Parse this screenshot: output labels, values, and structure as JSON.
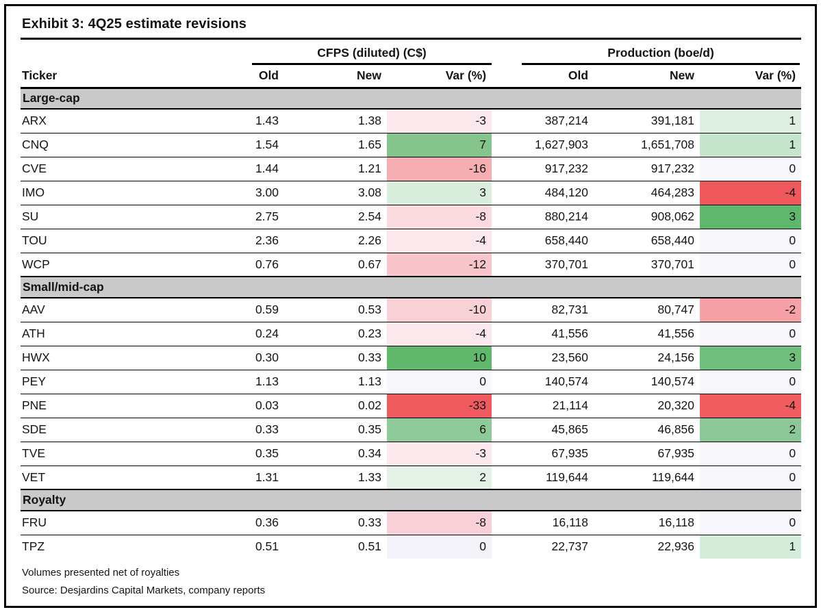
{
  "title": "Exhibit 3: 4Q25 estimate revisions",
  "table": {
    "groups": [
      {
        "label": "CFPS (diluted) (C$)"
      },
      {
        "label": "Production (boe/d)"
      }
    ],
    "columns": {
      "ticker": "Ticker",
      "old": "Old",
      "new": "New",
      "var": "Var (%)"
    },
    "section_band_color": "#c9c9c9",
    "negative_strong_color": "#ee585c",
    "positive_strong_color": "#5fb76d",
    "sections": [
      {
        "label": "Large-cap",
        "rows": [
          {
            "ticker": "ARX",
            "cfps_old": "1.43",
            "cfps_new": "1.38",
            "cfps_var": "-3",
            "cfps_var_color": "#fbe9ee",
            "prod_old": "387,214",
            "prod_new": "391,181",
            "prod_var": "1",
            "prod_var_color": "#dff0e3"
          },
          {
            "ticker": "CNQ",
            "cfps_old": "1.54",
            "cfps_new": "1.65",
            "cfps_var": "7",
            "cfps_var_color": "#85c58c",
            "prod_old": "1,627,903",
            "prod_new": "1,651,708",
            "prod_var": "1",
            "prod_var_color": "#c5e5cc"
          },
          {
            "ticker": "CVE",
            "cfps_old": "1.44",
            "cfps_new": "1.21",
            "cfps_var": "-16",
            "cfps_var_color": "#f5aeb2",
            "prod_old": "917,232",
            "prod_new": "917,232",
            "prod_var": "0",
            "prod_var_color": "#f8f7fb"
          },
          {
            "ticker": "IMO",
            "cfps_old": "3.00",
            "cfps_new": "3.08",
            "cfps_var": "3",
            "cfps_var_color": "#d9eedd",
            "prod_old": "484,120",
            "prod_new": "464,283",
            "prod_var": "-4",
            "prod_var_color": "#ee585c"
          },
          {
            "ticker": "SU",
            "cfps_old": "2.75",
            "cfps_new": "2.54",
            "cfps_var": "-8",
            "cfps_var_color": "#f9dbe0",
            "prod_old": "880,214",
            "prod_new": "908,062",
            "prod_var": "3",
            "prod_var_color": "#5fb76d"
          },
          {
            "ticker": "TOU",
            "cfps_old": "2.36",
            "cfps_new": "2.26",
            "cfps_var": "-4",
            "cfps_var_color": "#fae8ed",
            "prod_old": "658,440",
            "prod_new": "658,440",
            "prod_var": "0",
            "prod_var_color": "#f8f7fb"
          },
          {
            "ticker": "WCP",
            "cfps_old": "0.76",
            "cfps_new": "0.67",
            "cfps_var": "-12",
            "cfps_var_color": "#f7c5ca",
            "prod_old": "370,701",
            "prod_new": "370,701",
            "prod_var": "0",
            "prod_var_color": "#f8f7fb"
          }
        ]
      },
      {
        "label": "Small/mid-cap",
        "rows": [
          {
            "ticker": "AAV",
            "cfps_old": "0.59",
            "cfps_new": "0.53",
            "cfps_var": "-10",
            "cfps_var_color": "#f8d1d7",
            "prod_old": "82,731",
            "prod_new": "80,747",
            "prod_var": "-2",
            "prod_var_color": "#f5a1a7"
          },
          {
            "ticker": "ATH",
            "cfps_old": "0.24",
            "cfps_new": "0.23",
            "cfps_var": "-4",
            "cfps_var_color": "#fae8ed",
            "prod_old": "41,556",
            "prod_new": "41,556",
            "prod_var": "0",
            "prod_var_color": "#f8f7fb"
          },
          {
            "ticker": "HWX",
            "cfps_old": "0.30",
            "cfps_new": "0.33",
            "cfps_var": "10",
            "cfps_var_color": "#61b86d",
            "prod_old": "23,560",
            "prod_new": "24,156",
            "prod_var": "3",
            "prod_var_color": "#6fbe7b"
          },
          {
            "ticker": "PEY",
            "cfps_old": "1.13",
            "cfps_new": "1.13",
            "cfps_var": "0",
            "cfps_var_color": "#f8f7fb",
            "prod_old": "140,574",
            "prod_new": "140,574",
            "prod_var": "0",
            "prod_var_color": "#f8f7fb"
          },
          {
            "ticker": "PNE",
            "cfps_old": "0.03",
            "cfps_new": "0.02",
            "cfps_var": "-33",
            "cfps_var_color": "#ef5a5e",
            "prod_old": "21,114",
            "prod_new": "20,320",
            "prod_var": "-4",
            "prod_var_color": "#ef5d61"
          },
          {
            "ticker": "SDE",
            "cfps_old": "0.33",
            "cfps_new": "0.35",
            "cfps_var": "6",
            "cfps_var_color": "#8fca9a",
            "prod_old": "45,865",
            "prod_new": "46,856",
            "prod_var": "2",
            "prod_var_color": "#8cc897"
          },
          {
            "ticker": "TVE",
            "cfps_old": "0.35",
            "cfps_new": "0.34",
            "cfps_var": "-3",
            "cfps_var_color": "#fbe9ee",
            "prod_old": "67,935",
            "prod_new": "67,935",
            "prod_var": "0",
            "prod_var_color": "#f8f7fb"
          },
          {
            "ticker": "VET",
            "cfps_old": "1.31",
            "cfps_new": "1.33",
            "cfps_var": "2",
            "cfps_var_color": "#e3f1e6",
            "prod_old": "119,644",
            "prod_new": "119,644",
            "prod_var": "0",
            "prod_var_color": "#f8f7fb"
          }
        ]
      },
      {
        "label": "Royalty",
        "rows": [
          {
            "ticker": "FRU",
            "cfps_old": "0.36",
            "cfps_new": "0.33",
            "cfps_var": "-8",
            "cfps_var_color": "#f7d1d7",
            "prod_old": "16,118",
            "prod_new": "16,118",
            "prod_var": "0",
            "prod_var_color": "#f8f7fb"
          },
          {
            "ticker": "TPZ",
            "cfps_old": "0.51",
            "cfps_new": "0.51",
            "cfps_var": "0",
            "cfps_var_color": "#f4f3f9",
            "prod_old": "22,737",
            "prod_new": "22,936",
            "prod_var": "1",
            "prod_var_color": "#d6ecdb"
          }
        ]
      }
    ],
    "footnotes": [
      "Volumes presented net of royalties",
      "Source: Desjardins Capital Markets, company reports"
    ]
  }
}
